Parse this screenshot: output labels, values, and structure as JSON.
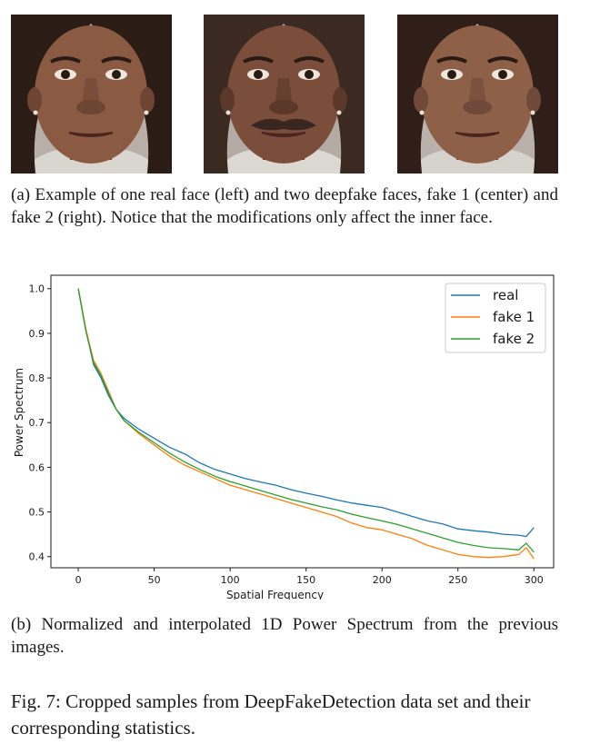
{
  "faces": [
    {
      "name": "real face",
      "skin": "#8a5a43",
      "skin_dark": "#6e4533",
      "hair": "#2b1c15",
      "bg": "#b8b0a8",
      "shirt": "#d9d6d0",
      "mustache": false
    },
    {
      "name": "fake 1",
      "skin": "#7a4e3b",
      "skin_dark": "#5a382a",
      "hair": "#3a2a22",
      "bg": "#b4aca4",
      "shirt": "#dcd9d3",
      "mustache": true
    },
    {
      "name": "fake 2",
      "skin": "#8e6048",
      "skin_dark": "#70493a",
      "hair": "#2f1f18",
      "bg": "#bab2aa",
      "shirt": "#d6d3cd",
      "mustache": false
    }
  ],
  "caption_a": "(a) Example of one real face (left) and two deepfake faces, fake 1 (center) and fake 2 (right). Notice that the modifications only affect the inner face.",
  "caption_b": "(b) Normalized and interpolated 1D Power Spectrum from the previous images.",
  "figure_caption": "Fig. 7: Cropped samples from DeepFakeDetection data set and their corresponding statistics.",
  "chart_data": {
    "type": "line",
    "xlabel": "Spatial Frequency",
    "ylabel": "Power Spectrum",
    "xlim": [
      -18,
      313
    ],
    "ylim": [
      0.375,
      1.03
    ],
    "xticks": [
      0,
      50,
      100,
      150,
      200,
      250,
      300
    ],
    "yticks": [
      0.4,
      0.5,
      0.6,
      0.7,
      0.8,
      0.9,
      1.0
    ],
    "ytick_labels": [
      "0.4",
      "0.5",
      "0.6",
      "0.7",
      "0.8",
      "0.9",
      "1.0"
    ],
    "legend_position": "top-right",
    "grid": false,
    "series": [
      {
        "name": "real",
        "color": "#1f77b4",
        "x": [
          0,
          5,
          10,
          15,
          20,
          25,
          30,
          40,
          50,
          60,
          70,
          80,
          90,
          100,
          110,
          120,
          130,
          140,
          150,
          160,
          170,
          180,
          190,
          200,
          210,
          220,
          230,
          240,
          250,
          260,
          270,
          280,
          290,
          295,
          300
        ],
        "y": [
          1.0,
          0.91,
          0.83,
          0.8,
          0.76,
          0.73,
          0.71,
          0.685,
          0.665,
          0.645,
          0.63,
          0.61,
          0.595,
          0.585,
          0.575,
          0.567,
          0.56,
          0.55,
          0.542,
          0.535,
          0.527,
          0.52,
          0.515,
          0.51,
          0.5,
          0.49,
          0.48,
          0.473,
          0.462,
          0.458,
          0.455,
          0.45,
          0.448,
          0.445,
          0.465
        ]
      },
      {
        "name": "fake 1",
        "color": "#ff7f0e",
        "x": [
          0,
          5,
          10,
          15,
          20,
          25,
          30,
          40,
          50,
          60,
          70,
          80,
          90,
          100,
          110,
          120,
          130,
          140,
          150,
          160,
          170,
          180,
          190,
          200,
          210,
          220,
          230,
          240,
          250,
          260,
          270,
          280,
          290,
          295,
          300
        ],
        "y": [
          1.0,
          0.91,
          0.84,
          0.81,
          0.77,
          0.73,
          0.705,
          0.675,
          0.65,
          0.625,
          0.605,
          0.59,
          0.575,
          0.56,
          0.55,
          0.54,
          0.53,
          0.52,
          0.51,
          0.5,
          0.49,
          0.475,
          0.465,
          0.46,
          0.45,
          0.44,
          0.425,
          0.415,
          0.405,
          0.4,
          0.398,
          0.4,
          0.405,
          0.42,
          0.395
        ]
      },
      {
        "name": "fake 2",
        "color": "#2ca02c",
        "x": [
          0,
          5,
          10,
          15,
          20,
          25,
          30,
          40,
          50,
          60,
          70,
          80,
          90,
          100,
          110,
          120,
          130,
          140,
          150,
          160,
          170,
          180,
          190,
          200,
          210,
          220,
          230,
          240,
          250,
          260,
          270,
          280,
          290,
          295,
          300
        ],
        "y": [
          1.0,
          0.905,
          0.835,
          0.805,
          0.765,
          0.73,
          0.705,
          0.678,
          0.655,
          0.632,
          0.612,
          0.595,
          0.58,
          0.568,
          0.558,
          0.548,
          0.538,
          0.528,
          0.52,
          0.512,
          0.505,
          0.495,
          0.487,
          0.48,
          0.472,
          0.462,
          0.452,
          0.442,
          0.432,
          0.425,
          0.42,
          0.418,
          0.415,
          0.43,
          0.41
        ]
      }
    ]
  }
}
